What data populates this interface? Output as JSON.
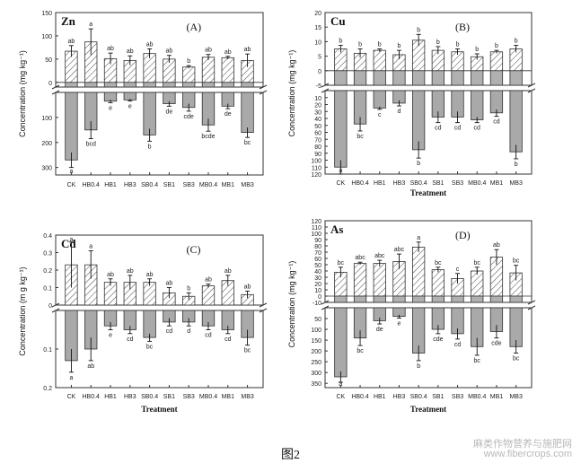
{
  "figure_caption": "图2",
  "watermark": {
    "line1": "麻类作物营养与施肥网",
    "line2": "www.fibercrops.com"
  },
  "colors": {
    "upper_bar_fill": "#ffffff",
    "hatch": "#555555",
    "lower_bar_fill": "#a9a9a9",
    "axis": "#333333"
  },
  "chart_data": [
    {
      "type": "bar",
      "panel": "(A)",
      "element": "Zn",
      "ylabel": "Concentration (mg kg⁻¹)",
      "xlabel": "",
      "categories": [
        "CK",
        "HB0.4",
        "HB1",
        "HB3",
        "SB0.4",
        "SB1",
        "SB3",
        "MB0.4",
        "MB1",
        "MB3"
      ],
      "upper": {
        "ylim": [
          -10,
          150
        ],
        "ticks": [
          0,
          50,
          100,
          150
        ],
        "values": [
          67,
          87,
          51,
          47,
          62,
          50,
          33,
          54,
          53,
          47
        ],
        "errors": [
          12,
          28,
          12,
          10,
          10,
          8,
          3,
          6,
          3,
          14
        ],
        "labels": [
          "ab",
          "a",
          "ab",
          "ab",
          "ab",
          "ab",
          "b",
          "ab",
          "ab",
          "ab"
        ]
      },
      "lower": {
        "ylim": [
          0,
          330
        ],
        "ticks": [
          100,
          200,
          300
        ],
        "values": [
          270,
          150,
          35,
          30,
          170,
          45,
          60,
          130,
          55,
          160
        ],
        "errors": [
          30,
          35,
          6,
          4,
          25,
          10,
          15,
          25,
          10,
          20
        ],
        "labels": [
          "a",
          "bcd",
          "e",
          "e",
          "b",
          "de",
          "cde",
          "bcde",
          "de",
          "bc"
        ]
      }
    },
    {
      "type": "bar",
      "panel": "(B)",
      "element": "Cu",
      "ylabel": "Concentration (mg kg⁻¹)",
      "xlabel": "Treatment",
      "categories": [
        "CK",
        "HB0.4",
        "HB1",
        "HB3",
        "SB0.4",
        "SB1",
        "SB3",
        "MB0.4",
        "MB1",
        "MB3"
      ],
      "upper": {
        "ylim": [
          -5,
          20
        ],
        "ticks": [
          -5,
          0,
          5,
          10,
          15,
          20
        ],
        "values": [
          7.5,
          6,
          7,
          5.5,
          10.5,
          7,
          6.5,
          4.8,
          6.5,
          7.5
        ],
        "errors": [
          1.2,
          1.5,
          0.5,
          1.5,
          2,
          1.3,
          1,
          1,
          0.5,
          1.2
        ],
        "labels": [
          "b",
          "b",
          "b",
          "b",
          "b",
          "b",
          "b",
          "b",
          "b",
          "b"
        ]
      },
      "lower": {
        "ylim": [
          0,
          120
        ],
        "ticks": [
          10,
          20,
          30,
          40,
          50,
          60,
          70,
          80,
          90,
          100,
          110,
          120
        ],
        "values": [
          110,
          48,
          25,
          18,
          85,
          38,
          38,
          42,
          32,
          88
        ],
        "errors": [
          10,
          10,
          2,
          4,
          12,
          8,
          8,
          4,
          5,
          10
        ],
        "labels": [
          "a",
          "bc",
          "c",
          "d",
          "b",
          "cd",
          "cd",
          "cd",
          "cd",
          "b"
        ]
      }
    },
    {
      "type": "bar",
      "panel": "(C)",
      "element": "Cd",
      "ylabel": "Concentration (m g kg⁻¹)",
      "xlabel": "Treatment",
      "categories": [
        "CK",
        "HB0.4",
        "HB1",
        "HB3",
        "SB0.4",
        "SB1",
        "SB3",
        "MB0.4",
        "MB1",
        "MB3"
      ],
      "upper": {
        "ylim": [
          0,
          0.4
        ],
        "ticks": [
          0.0,
          0.1,
          0.2,
          0.3,
          0.4
        ],
        "values": [
          0.23,
          0.23,
          0.13,
          0.13,
          0.13,
          0.07,
          0.05,
          0.11,
          0.14,
          0.06
        ],
        "errors": [
          0.13,
          0.08,
          0.02,
          0.04,
          0.02,
          0.03,
          0.02,
          0.01,
          0.03,
          0.02
        ],
        "labels": [
          "a",
          "a",
          "ab",
          "ab",
          "ab",
          "ab",
          "b",
          "ab",
          "ab",
          "ab"
        ]
      },
      "lower": {
        "ylim": [
          0,
          0.2
        ],
        "ticks": [
          0.1,
          0.2
        ],
        "values": [
          0.13,
          0.1,
          0.04,
          0.05,
          0.07,
          0.03,
          0.03,
          0.04,
          0.05,
          0.07
        ],
        "errors": [
          0.03,
          0.03,
          0.01,
          0.01,
          0.01,
          0.01,
          0.01,
          0.01,
          0.01,
          0.02
        ],
        "labels": [
          "a",
          "ab",
          "e",
          "cd",
          "bc",
          "cd",
          "d",
          "cd",
          "cd",
          "bc"
        ]
      }
    },
    {
      "type": "bar",
      "panel": "(D)",
      "element": "As",
      "ylabel": "Concentration (mg kg⁻¹)",
      "xlabel": "Treatment",
      "categories": [
        "CK",
        "HB0.4",
        "HB1",
        "HB3",
        "SB0.4",
        "SB1",
        "SB3",
        "MB0.4",
        "MB1",
        "MB3"
      ],
      "upper": {
        "ylim": [
          -10,
          120
        ],
        "ticks": [
          -10,
          0,
          10,
          20,
          30,
          40,
          50,
          60,
          70,
          80,
          90,
          100,
          110,
          120
        ],
        "values": [
          38,
          52,
          52,
          55,
          78,
          42,
          28,
          40,
          62,
          37
        ],
        "errors": [
          8,
          2,
          5,
          12,
          8,
          4,
          8,
          6,
          12,
          12
        ],
        "labels": [
          "bc",
          "abc",
          "abc",
          "abc",
          "a",
          "bc",
          "c",
          "bc",
          "ab",
          "bc"
        ]
      },
      "lower": {
        "ylim": [
          0,
          370
        ],
        "ticks": [
          50,
          100,
          150,
          200,
          250,
          300,
          350
        ],
        "values": [
          320,
          140,
          60,
          40,
          210,
          100,
          120,
          180,
          110,
          180
        ],
        "errors": [
          25,
          35,
          15,
          8,
          35,
          20,
          25,
          40,
          30,
          30
        ],
        "labels": [
          "a",
          "bc",
          "de",
          "e",
          "b",
          "cde",
          "cd",
          "bc",
          "cde",
          "bc"
        ]
      }
    }
  ]
}
